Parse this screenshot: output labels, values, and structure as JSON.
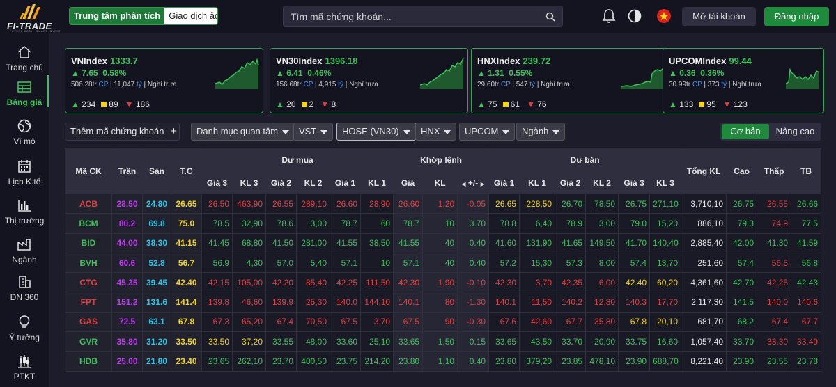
{
  "header": {
    "logo_text": "FI-TRADE",
    "logo_sub": "FUTURE DATA · SMART INVEST",
    "tab_analysis": "Trung tâm phân tích",
    "tab_paper": "Giao dịch ảo",
    "search_placeholder": "Tìm mã chứng khoán...",
    "open_account": "Mở tài khoản",
    "login": "Đăng nhập"
  },
  "sidebar": {
    "items": [
      {
        "label": "Trang chủ",
        "icon": "home-icon"
      },
      {
        "label": "Bảng giá",
        "icon": "table-icon"
      },
      {
        "label": "Vĩ mô",
        "icon": "globe-icon"
      },
      {
        "label": "Lịch K.tế",
        "icon": "calendar-icon"
      },
      {
        "label": "Thị trường",
        "icon": "bar-chart-icon"
      },
      {
        "label": "Ngành",
        "icon": "industry-icon"
      },
      {
        "label": "DN 360",
        "icon": "building-icon"
      },
      {
        "label": "Ý tưởng",
        "icon": "lightbulb-icon"
      },
      {
        "label": "PTKT",
        "icon": "candlestick-icon"
      }
    ]
  },
  "indices": [
    {
      "name": "VNIndex",
      "value": "1333.7",
      "change": "7.65",
      "pct": "0.58%",
      "vol": "506.28tr",
      "cp": "CP",
      "val": "11,047",
      "ty": "tỷ",
      "status": "Nghỉ trưa",
      "up": "234",
      "ref": "89",
      "down": "186"
    },
    {
      "name": "VN30Index",
      "value": "1396.18",
      "change": "6.41",
      "pct": "0.46%",
      "vol": "156.68tr",
      "cp": "CP",
      "val": "4,915",
      "ty": "tỷ",
      "status": "Nghỉ trưa",
      "up": "20",
      "ref": "2",
      "down": "8"
    },
    {
      "name": "HNXIndex",
      "value": "239.72",
      "change": "1.31",
      "pct": "0.55%",
      "vol": "29.60tr",
      "cp": "CP",
      "val": "547",
      "ty": "tỷ",
      "status": "Nghỉ trưa",
      "up": "75",
      "ref": "61",
      "down": "76"
    },
    {
      "name": "UPCOMIndex",
      "value": "99.44",
      "change": "0.36",
      "pct": "0.36%",
      "vol": "30.99tr",
      "cp": "CP",
      "val": "373",
      "ty": "tỷ",
      "status": "Nghỉ trưa",
      "up": "133",
      "ref": "95",
      "down": "123"
    }
  ],
  "filters": {
    "add_symbol": "Thêm mã chứng khoán",
    "watchlist": "Danh mục quan tâm",
    "vst": "VST",
    "hose": "HOSE (VN30)",
    "hnx": "HNX",
    "upcom": "UPCOM",
    "sector": "Ngành",
    "view_basic": "Cơ bản",
    "view_advanced": "Nâng cao"
  },
  "table": {
    "headers": {
      "symbol": "Mã CK",
      "ceil": "Trần",
      "floor": "Sàn",
      "ref": "T.C",
      "bid_group": "Dư mua",
      "match_group": "Khớp lệnh",
      "ask_group": "Dư bán",
      "price3": "Giá 3",
      "vol3": "KL 3",
      "price2": "Giá 2",
      "vol2": "KL 2",
      "price1": "Giá 1",
      "vol1": "KL 1",
      "mprice": "Giá",
      "mvol": "KL",
      "mchg": "+/-",
      "total": "Tổng KL",
      "high": "Cao",
      "low": "Thấp",
      "avg": "TB"
    },
    "rows": [
      {
        "sym": "ACB",
        "ceil": "28.50",
        "floor": "24.80",
        "ref": "26.65",
        "b3": "26.50",
        "bv3": "463,90",
        "b2": "26.55",
        "bv2": "289,10",
        "b1": "26.60",
        "bv1": "28,90",
        "mp": "26.60",
        "mv": "1,20",
        "mc": "-0.05",
        "a1": "26.65",
        "av1": "228,50",
        "a2": "26.70",
        "av2": "78,50",
        "a3": "26.75",
        "av3": "271,10",
        "total": "3,710,10",
        "high": "26.75",
        "low": "26.55",
        "avg": "26.66"
      },
      {
        "sym": "BCM",
        "ceil": "80.2",
        "floor": "69.8",
        "ref": "75.0",
        "b3": "78.5",
        "bv3": "32,90",
        "b2": "78.6",
        "bv2": "3,00",
        "b1": "78.7",
        "bv1": "60",
        "mp": "78.7",
        "mv": "10",
        "mc": "3.70",
        "a1": "78.8",
        "av1": "6,40",
        "a2": "78.9",
        "av2": "3,00",
        "a3": "79.0",
        "av3": "15,20",
        "total": "886,10",
        "high": "79.3",
        "low": "74.9",
        "avg": "77.5"
      },
      {
        "sym": "BID",
        "ceil": "44.00",
        "floor": "38.30",
        "ref": "41.15",
        "b3": "41.45",
        "bv3": "68,80",
        "b2": "41.50",
        "bv2": "281,00",
        "b1": "41.55",
        "bv1": "38,50",
        "mp": "41.55",
        "mv": "40",
        "mc": "0.40",
        "a1": "41.60",
        "av1": "131,90",
        "a2": "41.65",
        "av2": "149,50",
        "a3": "41.70",
        "av3": "140,40",
        "total": "2,885,40",
        "high": "42.00",
        "low": "41.30",
        "avg": "41.59"
      },
      {
        "sym": "BVH",
        "ceil": "60.6",
        "floor": "52.8",
        "ref": "56.7",
        "b3": "56.9",
        "bv3": "4,30",
        "b2": "57.0",
        "bv2": "5,40",
        "b1": "57.1",
        "bv1": "10",
        "mp": "57.1",
        "mv": "40",
        "mc": "0.40",
        "a1": "57.2",
        "av1": "15,30",
        "a2": "57.3",
        "av2": "8,00",
        "a3": "57.4",
        "av3": "13,70",
        "total": "251,60",
        "high": "57.4",
        "low": "56.5",
        "avg": "56.8"
      },
      {
        "sym": "CTG",
        "ceil": "45.35",
        "floor": "39.45",
        "ref": "42.40",
        "b3": "42.15",
        "bv3": "105,00",
        "b2": "42.20",
        "bv2": "85,40",
        "b1": "42.25",
        "bv1": "111,50",
        "mp": "42.30",
        "mv": "1,90",
        "mc": "-0.10",
        "a1": "42.30",
        "av1": "3,70",
        "a2": "42.35",
        "av2": "6,00",
        "a3": "42.40",
        "av3": "60,20",
        "total": "4,361,60",
        "high": "42.70",
        "low": "42.25",
        "avg": "42.43"
      },
      {
        "sym": "FPT",
        "ceil": "151.2",
        "floor": "131.6",
        "ref": "141.4",
        "b3": "139.8",
        "bv3": "46,60",
        "b2": "139.9",
        "bv2": "25,30",
        "b1": "140.0",
        "bv1": "144,10",
        "mp": "140.1",
        "mv": "80",
        "mc": "-1.30",
        "a1": "140.1",
        "av1": "11,50",
        "a2": "140.2",
        "av2": "12,80",
        "a3": "140.3",
        "av3": "17,70",
        "total": "2,117,30",
        "high": "141.5",
        "low": "140.0",
        "avg": "140.6"
      },
      {
        "sym": "GAS",
        "ceil": "72.5",
        "floor": "63.1",
        "ref": "67.8",
        "b3": "67.3",
        "bv3": "65,20",
        "b2": "67.4",
        "bv2": "70,50",
        "b1": "67.5",
        "bv1": "3,70",
        "mp": "67.5",
        "mv": "90",
        "mc": "-0.30",
        "a1": "67.6",
        "av1": "42,60",
        "a2": "67.7",
        "av2": "35,80",
        "a3": "67.8",
        "av3": "20,10",
        "total": "681,70",
        "high": "68.2",
        "low": "67.4",
        "avg": "67.7"
      },
      {
        "sym": "GVR",
        "ceil": "35.80",
        "floor": "31.20",
        "ref": "33.50",
        "b3": "33.50",
        "bv3": "37,20",
        "b2": "33.55",
        "bv2": "48,00",
        "b1": "33.60",
        "bv1": "25,10",
        "mp": "33.65",
        "mv": "1,50",
        "mc": "0.15",
        "a1": "33.65",
        "av1": "43,50",
        "a2": "33.70",
        "av2": "20,90",
        "a3": "33.75",
        "av3": "16,60",
        "total": "1,057,40",
        "high": "33.70",
        "low": "33.30",
        "avg": "33.49"
      },
      {
        "sym": "HDB",
        "ceil": "25.00",
        "floor": "21.80",
        "ref": "23.40",
        "b3": "23.65",
        "bv3": "262,10",
        "b2": "23.70",
        "bv2": "400,50",
        "b1": "23.75",
        "bv1": "214,20",
        "mp": "23.80",
        "mv": "1,10",
        "mc": "0.40",
        "a1": "23.80",
        "av1": "379,20",
        "a2": "23.85",
        "av2": "478,10",
        "a3": "23.90",
        "av3": "688,70",
        "total": "8,221,40",
        "high": "23.90",
        "low": "23.55",
        "avg": "23.78"
      }
    ]
  },
  "colors": {
    "up": "#3ec05a",
    "down": "#e04040",
    "ref": "#f2d21a",
    "ceil": "#c03cf0",
    "floor": "#29c6e8",
    "accent": "#1f8a3c"
  }
}
